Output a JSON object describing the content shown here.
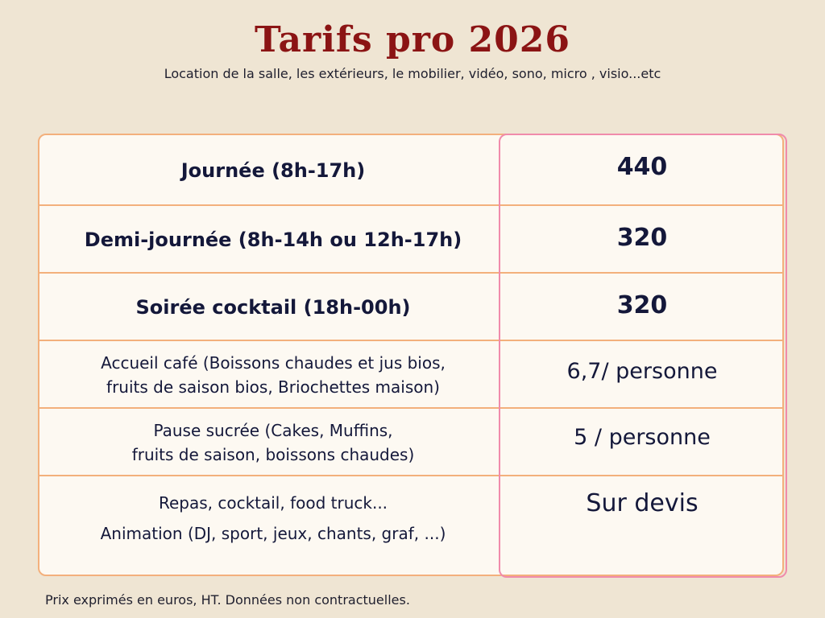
{
  "header": {
    "title": "Tarifs pro 2026",
    "subtitle": "Location de la salle, les extérieurs, le mobilier, vidéo, sono, micro , visio...etc"
  },
  "rows": [
    {
      "label_lines": [
        "Journée (8h-17h)"
      ],
      "value": "440"
    },
    {
      "label_lines": [
        "Demi-journée (8h-14h ou 12h-17h)"
      ],
      "value": "320"
    },
    {
      "label_lines": [
        "Soirée cocktail (18h-00h)"
      ],
      "value": "320"
    },
    {
      "label_lines": [
        "Accueil café (Boissons chaudes et jus bios,",
        "fruits de saison bios, Briochettes maison)"
      ],
      "value": "6,7/ personne"
    },
    {
      "label_lines": [
        "Pause sucrée (Cakes, Muffins,",
        "fruits de saison, boissons chaudes)"
      ],
      "value": "5 / personne"
    },
    {
      "label_lines": [
        "Repas, cocktail, food truck...",
        "Animation (DJ, sport, jeux, chants, graf, ...)"
      ],
      "value": "Sur devis"
    }
  ],
  "footnote": "Prix exprimés en euros, HT. Données non contractuelles."
}
